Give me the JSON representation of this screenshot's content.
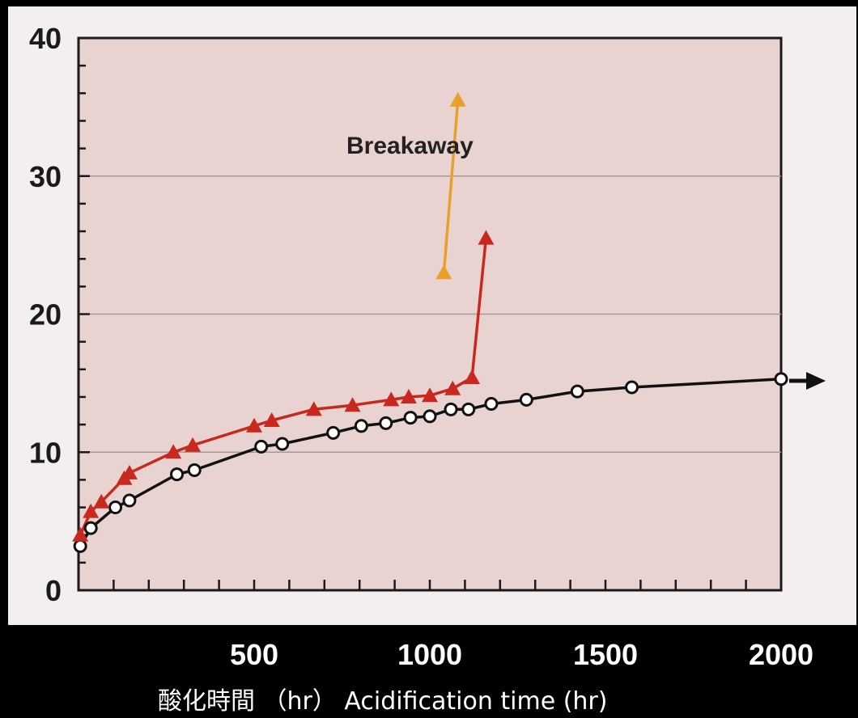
{
  "chart_data": {
    "type": "line",
    "title": "",
    "xlabel": "酸化時間 （hr） Acidification time (hr)",
    "ylabel": "",
    "xlim": [
      0,
      2000
    ],
    "ylim": [
      0,
      40
    ],
    "x_ticks": [
      500,
      1000,
      1500,
      2000
    ],
    "y_ticks": [
      0,
      10,
      20,
      30,
      40
    ],
    "grid": "horizontal",
    "annotation": "Breakaway",
    "series": [
      {
        "color": "#111111",
        "marker": "open-circle",
        "points": [
          [
            5,
            3.2
          ],
          [
            35,
            4.5
          ],
          [
            105,
            6
          ],
          [
            145,
            6.5
          ],
          [
            280,
            8.4
          ],
          [
            330,
            8.7
          ],
          [
            520,
            10.4
          ],
          [
            580,
            10.6
          ],
          [
            725,
            11.4
          ],
          [
            805,
            11.9
          ],
          [
            875,
            12.1
          ],
          [
            945,
            12.5
          ],
          [
            1000,
            12.6
          ],
          [
            1060,
            13.1
          ],
          [
            1110,
            13.1
          ],
          [
            1175,
            13.5
          ],
          [
            1275,
            13.8
          ],
          [
            1420,
            14.4
          ],
          [
            1575,
            14.7
          ],
          [
            2000,
            15.3
          ]
        ],
        "continues": true
      },
      {
        "color": "#c8281e",
        "marker": "filled-triangle",
        "points": [
          [
            5,
            4
          ],
          [
            35,
            5.7
          ],
          [
            65,
            6.4
          ],
          [
            130,
            8.1
          ],
          [
            145,
            8.5
          ],
          [
            270,
            10
          ],
          [
            325,
            10.5
          ],
          [
            500,
            11.9
          ],
          [
            550,
            12.3
          ],
          [
            670,
            13.1
          ],
          [
            780,
            13.4
          ],
          [
            890,
            13.8
          ],
          [
            940,
            14
          ],
          [
            1000,
            14.1
          ],
          [
            1065,
            14.6
          ],
          [
            1120,
            15.4
          ],
          [
            1160,
            25.5
          ]
        ]
      },
      {
        "color": "#e8a02c",
        "marker": "filled-triangle",
        "points": [
          [
            1040,
            23
          ],
          [
            1080,
            35.5
          ]
        ]
      }
    ]
  }
}
